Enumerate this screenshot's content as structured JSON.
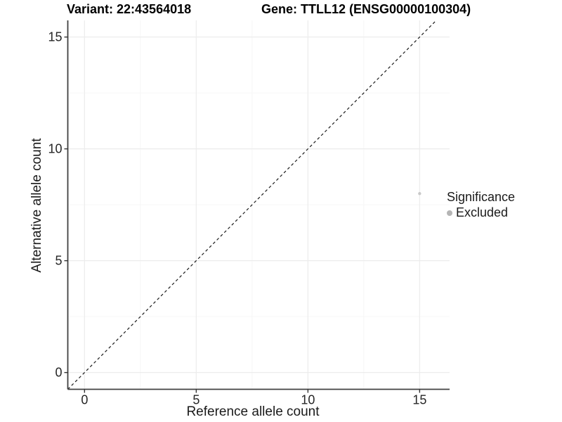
{
  "titles": {
    "variant": "Variant: 22:43564018",
    "gene": "Gene: TTLL12 (ENSG00000100304)"
  },
  "chart_data": {
    "type": "scatter",
    "xlabel": "Reference allele count",
    "ylabel": "Alternative allele count",
    "xlim": [
      -0.75,
      16.3
    ],
    "ylim": [
      -0.75,
      15.75
    ],
    "xticks": [
      0,
      5,
      10,
      15
    ],
    "yticks": [
      0,
      5,
      10,
      15
    ],
    "minor_xticks": [
      2.5,
      7.5,
      12.5
    ],
    "minor_yticks": [
      2.5,
      7.5,
      12.5
    ],
    "grid": true,
    "points": [
      {
        "x": 15,
        "y": 8,
        "significance": "Excluded"
      }
    ],
    "reference_line": {
      "slope": 1,
      "intercept": 0,
      "style": "dashed",
      "color": "#1a1a1a"
    },
    "legend": {
      "title": "Significance",
      "position": "right",
      "entries": [
        {
          "label": "Excluded",
          "color": "#b5b5b5"
        }
      ]
    },
    "colors": {
      "point": "#c9c9c9",
      "grid_major": "#ececec",
      "grid_minor": "#f6f6f6",
      "axis_line": "#404040",
      "tick_mark": "#333333",
      "tick_label": "#262626"
    }
  }
}
